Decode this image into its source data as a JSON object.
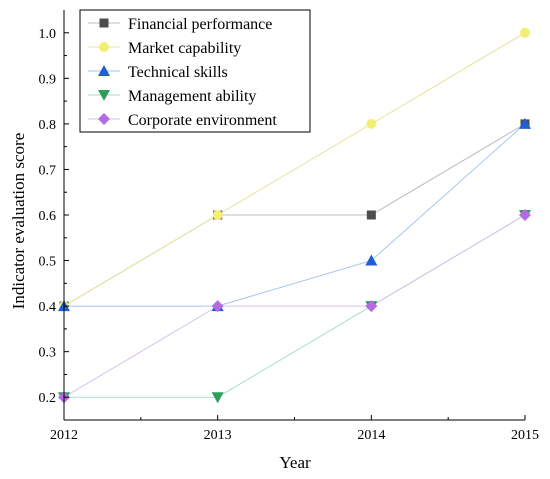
{
  "chart_data": {
    "type": "line",
    "xlabel": "Year",
    "ylabel": "Indicator evaluation score",
    "x": [
      2012,
      2013,
      2014,
      2015
    ],
    "x_tick_labels": [
      "2012",
      "2013",
      "2014",
      "2015"
    ],
    "xlim": [
      2012,
      2015
    ],
    "ylim": [
      0.15,
      1.05
    ],
    "y_ticks": [
      0.2,
      0.3,
      0.4,
      0.5,
      0.6,
      0.7,
      0.8,
      0.9,
      1.0
    ],
    "y_tick_labels": [
      "0.2",
      "0.3",
      "0.4",
      "0.5",
      "0.6",
      "0.7",
      "0.8",
      "0.9",
      "1.0"
    ],
    "grid": false,
    "legend_position": "top-left",
    "series": [
      {
        "name": "Financial performance",
        "marker": "square",
        "color": "#4d4d4d",
        "line_color": "#bdbdbd",
        "values": [
          0.4,
          0.6,
          0.6,
          0.8
        ]
      },
      {
        "name": "Market capability",
        "marker": "circle",
        "color": "#f2ef73",
        "line_color": "#e6e49a",
        "values": [
          0.4,
          0.6,
          0.8,
          1.0
        ]
      },
      {
        "name": "Technical skills",
        "marker": "triangle-up",
        "color": "#1f5fd6",
        "line_color": "#a9c4ee",
        "values": [
          0.4,
          0.4,
          0.5,
          0.8
        ]
      },
      {
        "name": "Management ability",
        "marker": "triangle-down",
        "color": "#2e9e5b",
        "line_color": "#a8ddc7",
        "values": [
          0.2,
          0.2,
          0.4,
          0.6
        ]
      },
      {
        "name": "Corporate environment",
        "marker": "diamond",
        "color": "#b36ae2",
        "line_color": "#d6c2ee",
        "values": [
          0.2,
          0.4,
          0.4,
          0.6
        ]
      }
    ]
  }
}
